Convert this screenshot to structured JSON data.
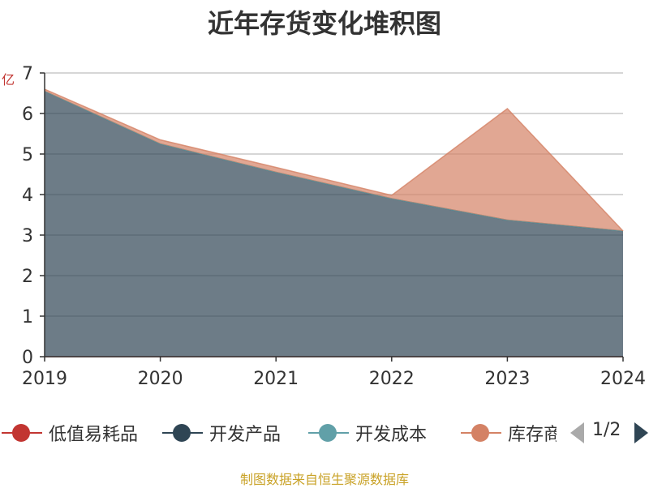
{
  "chart_data": {
    "type": "area",
    "title": "近年存货变化堆积图",
    "x": [
      "2019",
      "2020",
      "2021",
      "2022",
      "2023",
      "2024"
    ],
    "ylim": [
      0,
      7
    ],
    "yticks": [
      "0",
      "1",
      "2",
      "3",
      "4",
      "5",
      "6",
      "7"
    ],
    "ylabel": "亿",
    "stacked": true,
    "grid": true,
    "series": [
      {
        "name": "低值易耗品",
        "color": "#c23531",
        "values": [
          0,
          0,
          0,
          0,
          0,
          0
        ]
      },
      {
        "name": "开发产品",
        "color": "#2f4554",
        "values": [
          6.55,
          5.25,
          4.55,
          3.9,
          3.37,
          3.1
        ]
      },
      {
        "name": "开发成本",
        "color": "#61a0a8",
        "values": [
          0,
          0,
          0,
          0,
          0,
          0
        ]
      },
      {
        "name": "库存商品",
        "color": "#d48265",
        "values": [
          0.05,
          0.1,
          0.12,
          0.08,
          2.75,
          0
        ]
      }
    ],
    "legend": {
      "position": "bottom",
      "page": "1/2"
    },
    "source": "制图数据来自恒生聚源数据库"
  }
}
